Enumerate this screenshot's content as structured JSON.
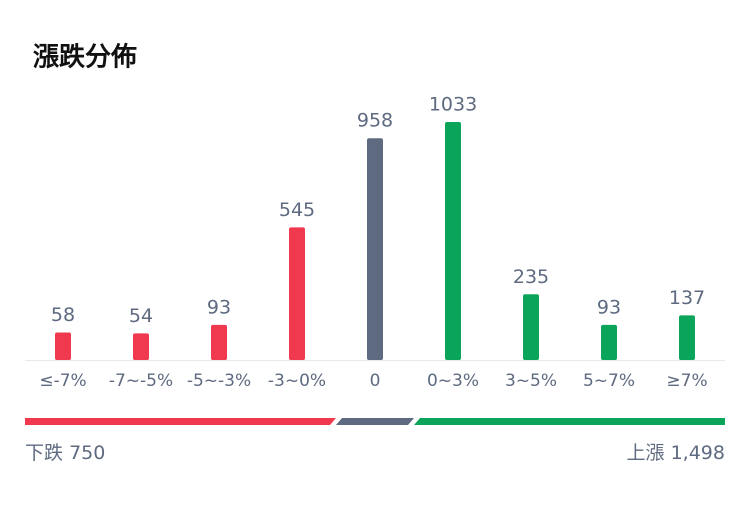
{
  "chart_data": {
    "type": "bar",
    "title": "漲跌分佈",
    "categories": [
      "≤-7%",
      "-7~-5%",
      "-5~-3%",
      "-3~0%",
      "0",
      "0~3%",
      "3~5%",
      "5~7%",
      "≥7%"
    ],
    "values": [
      58,
      54,
      93,
      545,
      958,
      1033,
      235,
      93,
      137
    ],
    "colors": [
      "#f0384f",
      "#f0384f",
      "#f0384f",
      "#f0384f",
      "#5e6a80",
      "#0aa55a",
      "#0aa55a",
      "#0aa55a",
      "#0aa55a"
    ]
  },
  "summary": {
    "down_label": "下跌",
    "down_count": "750",
    "up_label": "上漲",
    "up_count": "1,498"
  }
}
